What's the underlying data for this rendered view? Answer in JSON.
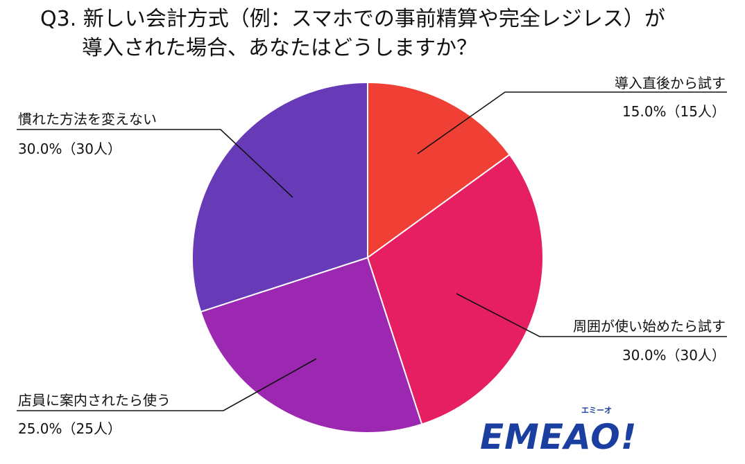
{
  "title": {
    "line1": "Q3. 新しい会計方式（例：スマホでの事前精算や完全レジレス）が",
    "line2": "導入された場合、あなたはどうしますか？"
  },
  "chart_data": {
    "type": "pie",
    "categories": [
      "導入直後から試す",
      "周囲が使い始めたら試す",
      "店員に案内されたら使う",
      "慣れた方法を変えない"
    ],
    "values": [
      15.0,
      30.0,
      25.0,
      30.0
    ],
    "counts_label": [
      "15.0%（15人）",
      "30.0%（30人）",
      "25.0%（25人）",
      "30.0%（30人）"
    ],
    "colors": [
      "#f04035",
      "#e61e62",
      "#9c27b0",
      "#673ab7"
    ],
    "start_angle": "12 o'clock",
    "direction": "clockwise",
    "legend": "none"
  },
  "logo": {
    "text": "EMEAO!",
    "kana": "エミーオ",
    "colors": {
      "main": "#1b3fa0",
      "accent": "#f5b800"
    }
  }
}
